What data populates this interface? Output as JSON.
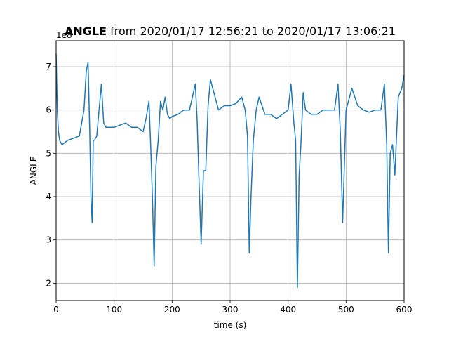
{
  "chart_data": {
    "type": "line",
    "title_bold": "ANGLE",
    "title_rest": " from 2020/01/17 12:56:21 to 2020/01/17 13:06:21",
    "xlabel": "time (s)",
    "ylabel": "ANGLE",
    "y_offset_label": "1e8",
    "xlim": [
      0,
      600
    ],
    "ylim": [
      1.6,
      7.6
    ],
    "xticks": [
      0,
      100,
      200,
      300,
      400,
      500,
      600
    ],
    "yticks": [
      2,
      3,
      4,
      5,
      6,
      7
    ],
    "grid": true,
    "line_color": "#1f77b4",
    "series": [
      {
        "x": [
          0,
          2,
          4,
          6,
          10,
          20,
          30,
          40,
          48,
          52,
          55,
          58,
          60,
          62,
          64,
          66,
          70,
          74,
          78,
          82,
          86,
          90,
          100,
          110,
          120,
          130,
          140,
          150,
          155,
          160,
          163,
          166,
          169,
          172,
          176,
          180,
          184,
          188,
          192,
          196,
          200,
          210,
          220,
          230,
          240,
          243,
          246,
          250,
          254,
          258,
          262,
          266,
          270,
          280,
          290,
          300,
          310,
          320,
          326,
          330,
          333,
          336,
          340,
          345,
          350,
          360,
          370,
          380,
          390,
          400,
          405,
          410,
          413,
          416,
          419,
          422,
          426,
          430,
          440,
          450,
          460,
          470,
          480,
          486,
          490,
          494,
          500,
          510,
          520,
          530,
          540,
          550,
          560,
          566,
          570,
          573,
          576,
          580,
          584,
          590,
          596,
          600
        ],
        "y": [
          7.3,
          6.0,
          5.5,
          5.3,
          5.2,
          5.3,
          5.35,
          5.4,
          6.0,
          6.9,
          7.1,
          5.5,
          4.0,
          3.4,
          5.3,
          5.3,
          5.4,
          6.0,
          6.6,
          5.7,
          5.6,
          5.6,
          5.6,
          5.65,
          5.7,
          5.6,
          5.6,
          5.5,
          5.8,
          6.2,
          5.2,
          4.0,
          2.4,
          4.7,
          5.3,
          6.2,
          6.0,
          6.3,
          5.9,
          5.8,
          5.85,
          5.9,
          6.0,
          6.0,
          6.6,
          5.8,
          4.5,
          2.9,
          4.6,
          4.6,
          6.1,
          6.7,
          6.5,
          6.0,
          6.1,
          6.1,
          6.15,
          6.3,
          6.0,
          5.4,
          2.7,
          4.0,
          5.3,
          6.0,
          6.3,
          5.9,
          5.9,
          5.8,
          5.9,
          6.0,
          6.6,
          5.7,
          5.3,
          1.9,
          4.5,
          5.2,
          6.4,
          6.0,
          5.9,
          5.9,
          6.0,
          6.0,
          6.0,
          6.6,
          5.5,
          3.4,
          6.0,
          6.5,
          6.1,
          6.0,
          5.95,
          6.0,
          6.0,
          6.6,
          5.2,
          2.7,
          5.0,
          5.2,
          4.5,
          6.3,
          6.5,
          6.8
        ]
      }
    ]
  }
}
